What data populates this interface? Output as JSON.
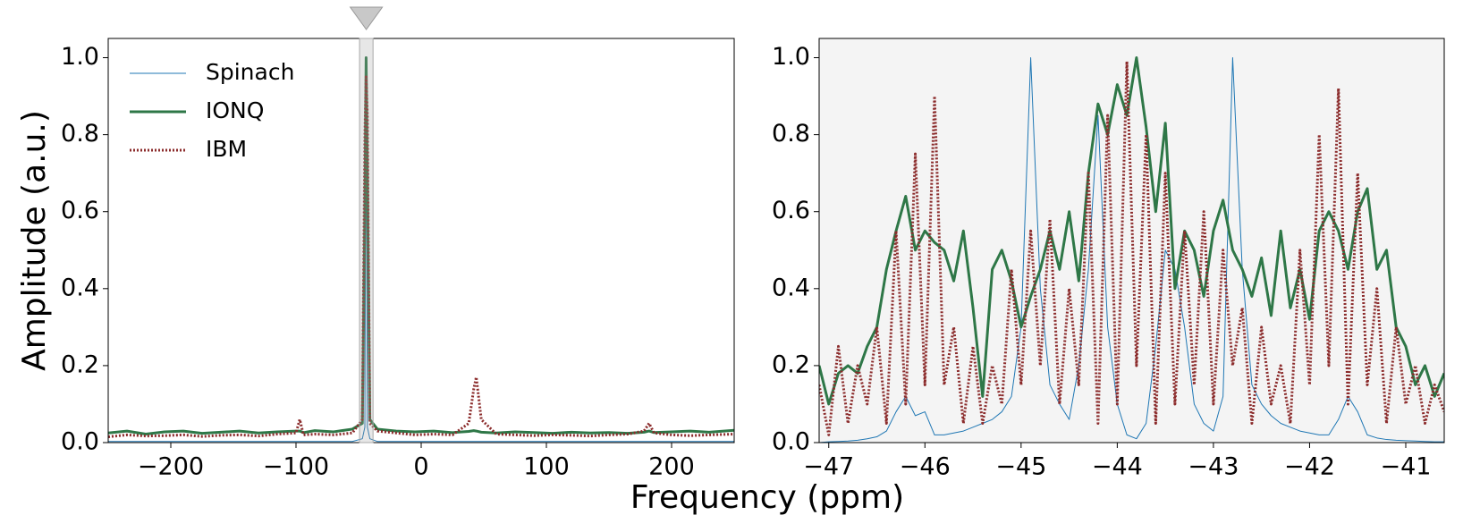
{
  "chart_data": [
    {
      "type": "line",
      "xlabel": "Frequency (ppm)",
      "ylabel": "Amplitude (a.u.)",
      "legend": "upper left",
      "xlim": [
        -250,
        250
      ],
      "xticks": [
        {
          "value": -200,
          "label": "−200"
        },
        {
          "value": -100,
          "label": "−100"
        },
        0,
        100,
        200
      ],
      "ylim": [
        0,
        1.05
      ],
      "yticks": [
        {
          "value": 0,
          "label": "0.0"
        },
        0.2,
        0.4,
        0.6,
        0.8,
        {
          "value": 1,
          "label": "1.0"
        }
      ],
      "x": [
        -250,
        -235,
        -220,
        -205,
        -190,
        -175,
        -160,
        -145,
        -130,
        -115,
        -100,
        -97,
        -94,
        -85,
        -70,
        -55,
        -47,
        -45,
        -44,
        -43,
        -41,
        -35,
        -20,
        -5,
        10,
        25,
        38,
        42,
        44,
        48,
        60,
        75,
        90,
        105,
        120,
        135,
        150,
        165,
        178,
        182,
        186,
        200,
        215,
        230,
        250
      ],
      "series": [
        {
          "name": "Spinach",
          "color": "#1f77b4",
          "linestyle": "solid",
          "linewidth": 1,
          "values": [
            0.003,
            0.003,
            0.003,
            0.003,
            0.003,
            0.003,
            0.003,
            0.003,
            0.003,
            0.003,
            0.003,
            0.003,
            0.003,
            0.003,
            0.003,
            0.003,
            0.01,
            0.04,
            1.0,
            0.04,
            0.01,
            0.003,
            0.003,
            0.003,
            0.003,
            0.003,
            0.003,
            0.003,
            0.003,
            0.003,
            0.003,
            0.003,
            0.003,
            0.003,
            0.003,
            0.003,
            0.003,
            0.003,
            0.003,
            0.003,
            0.003,
            0.003,
            0.003,
            0.003,
            0.003
          ]
        },
        {
          "name": "IONQ",
          "color": "#2e7747",
          "linestyle": "solid",
          "linewidth": 3,
          "values": [
            0.025,
            0.03,
            0.022,
            0.028,
            0.03,
            0.024,
            0.027,
            0.03,
            0.025,
            0.028,
            0.03,
            0.03,
            0.026,
            0.031,
            0.028,
            0.035,
            0.05,
            0.6,
            1.0,
            0.7,
            0.06,
            0.035,
            0.03,
            0.028,
            0.03,
            0.026,
            0.029,
            0.031,
            0.03,
            0.027,
            0.025,
            0.028,
            0.026,
            0.024,
            0.027,
            0.025,
            0.026,
            0.024,
            0.027,
            0.03,
            0.026,
            0.028,
            0.03,
            0.027,
            0.032
          ]
        },
        {
          "name": "IBM",
          "color": "#8b2b2b",
          "linestyle": "dotted",
          "linewidth": 3,
          "values": [
            0.015,
            0.02,
            0.017,
            0.018,
            0.02,
            0.016,
            0.019,
            0.02,
            0.017,
            0.022,
            0.025,
            0.06,
            0.02,
            0.022,
            0.02,
            0.025,
            0.06,
            0.8,
            0.95,
            0.85,
            0.05,
            0.03,
            0.025,
            0.02,
            0.022,
            0.02,
            0.05,
            0.14,
            0.17,
            0.06,
            0.022,
            0.02,
            0.018,
            0.02,
            0.019,
            0.017,
            0.02,
            0.022,
            0.03,
            0.05,
            0.025,
            0.02,
            0.018,
            0.02,
            0.022
          ]
        }
      ]
    },
    {
      "type": "line",
      "background": "#f4f4f4",
      "xlim": [
        -47.1,
        -40.6
      ],
      "xticks": [
        {
          "value": -47,
          "label": "−47"
        },
        {
          "value": -46,
          "label": "−46"
        },
        {
          "value": -45,
          "label": "−45"
        },
        {
          "value": -44,
          "label": "−44"
        },
        {
          "value": -43,
          "label": "−43"
        },
        {
          "value": -42,
          "label": "−42"
        },
        {
          "value": -41,
          "label": "−41"
        }
      ],
      "ylim": [
        0,
        1.05
      ],
      "yticks": [
        {
          "value": 0,
          "label": "0.0"
        },
        0.2,
        0.4,
        0.6,
        0.8,
        {
          "value": 1,
          "label": "1.0"
        }
      ],
      "x": [
        -47.1,
        -47.0,
        -46.9,
        -46.8,
        -46.7,
        -46.6,
        -46.5,
        -46.4,
        -46.3,
        -46.2,
        -46.1,
        -46.0,
        -45.9,
        -45.8,
        -45.7,
        -45.6,
        -45.5,
        -45.4,
        -45.3,
        -45.2,
        -45.1,
        -45.0,
        -44.9,
        -44.8,
        -44.7,
        -44.6,
        -44.5,
        -44.4,
        -44.3,
        -44.2,
        -44.1,
        -44.0,
        -43.9,
        -43.8,
        -43.7,
        -43.6,
        -43.5,
        -43.4,
        -43.3,
        -43.2,
        -43.1,
        -43.0,
        -42.9,
        -42.8,
        -42.7,
        -42.6,
        -42.5,
        -42.4,
        -42.3,
        -42.2,
        -42.1,
        -42.0,
        -41.9,
        -41.8,
        -41.7,
        -41.6,
        -41.5,
        -41.4,
        -41.3,
        -41.2,
        -41.1,
        -41.0,
        -40.9,
        -40.8,
        -40.7,
        -40.6
      ],
      "series": [
        {
          "color": "#1f77b4",
          "linestyle": "solid",
          "linewidth": 1,
          "values": [
            0.0,
            0.002,
            0.003,
            0.004,
            0.006,
            0.01,
            0.015,
            0.03,
            0.08,
            0.12,
            0.07,
            0.08,
            0.02,
            0.02,
            0.025,
            0.03,
            0.04,
            0.05,
            0.06,
            0.08,
            0.12,
            0.3,
            1.0,
            0.4,
            0.15,
            0.1,
            0.06,
            0.2,
            0.45,
            0.85,
            0.3,
            0.1,
            0.02,
            0.01,
            0.05,
            0.25,
            0.5,
            0.45,
            0.3,
            0.1,
            0.05,
            0.03,
            0.12,
            1.0,
            0.45,
            0.15,
            0.1,
            0.07,
            0.05,
            0.04,
            0.03,
            0.025,
            0.02,
            0.02,
            0.06,
            0.12,
            0.08,
            0.02,
            0.012,
            0.008,
            0.006,
            0.005,
            0.004,
            0.003,
            0.002,
            0.002
          ]
        },
        {
          "color": "#2e7747",
          "linestyle": "solid",
          "linewidth": 3,
          "values": [
            0.2,
            0.1,
            0.18,
            0.2,
            0.18,
            0.25,
            0.3,
            0.45,
            0.55,
            0.64,
            0.5,
            0.55,
            0.52,
            0.5,
            0.42,
            0.55,
            0.35,
            0.12,
            0.45,
            0.5,
            0.42,
            0.3,
            0.38,
            0.45,
            0.55,
            0.45,
            0.6,
            0.42,
            0.7,
            0.88,
            0.8,
            0.93,
            0.85,
            1.0,
            0.82,
            0.6,
            0.83,
            0.4,
            0.55,
            0.5,
            0.38,
            0.55,
            0.63,
            0.5,
            0.45,
            0.38,
            0.48,
            0.33,
            0.55,
            0.35,
            0.45,
            0.32,
            0.55,
            0.6,
            0.55,
            0.45,
            0.6,
            0.66,
            0.45,
            0.5,
            0.3,
            0.25,
            0.15,
            0.2,
            0.12,
            0.18
          ]
        },
        {
          "color": "#8b2b2b",
          "linestyle": "dotted",
          "linewidth": 3,
          "values": [
            0.15,
            0.02,
            0.25,
            0.05,
            0.2,
            0.1,
            0.3,
            0.05,
            0.55,
            0.1,
            0.75,
            0.15,
            0.9,
            0.15,
            0.3,
            0.05,
            0.25,
            0.05,
            0.2,
            0.1,
            0.45,
            0.15,
            0.55,
            0.2,
            0.58,
            0.1,
            0.4,
            0.15,
            0.7,
            0.05,
            0.85,
            0.1,
            0.99,
            0.2,
            0.8,
            0.05,
            0.7,
            0.1,
            0.55,
            0.15,
            0.6,
            0.1,
            0.5,
            0.2,
            0.35,
            0.05,
            0.3,
            0.1,
            0.2,
            0.05,
            0.5,
            0.15,
            0.8,
            0.2,
            0.92,
            0.1,
            0.7,
            0.15,
            0.4,
            0.05,
            0.3,
            0.1,
            0.2,
            0.05,
            0.15,
            0.08
          ]
        }
      ]
    }
  ]
}
